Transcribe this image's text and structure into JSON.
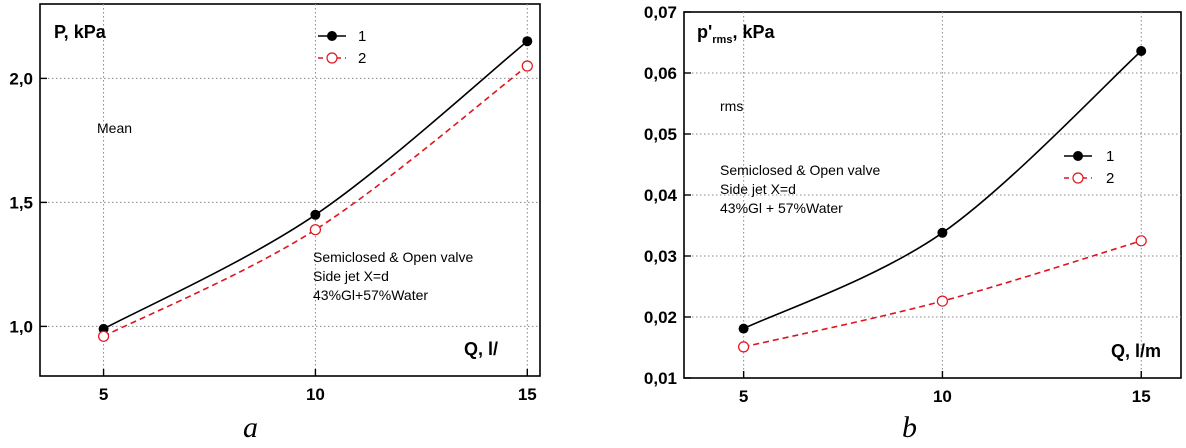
{
  "chart_data": [
    {
      "type": "line",
      "panel_label": "a",
      "ylabel": "P, kPa",
      "xlabel": "Q, l/",
      "xlim": [
        3.5,
        15.3
      ],
      "ylim": [
        0.8,
        2.3
      ],
      "xticks": [
        5,
        10,
        15
      ],
      "yticks": [
        1.0,
        1.5,
        2.0
      ],
      "xtick_labels": [
        "5",
        "10",
        "15"
      ],
      "ytick_labels": [
        "1,0",
        "1,5",
        "2,0"
      ],
      "grid": "vertical dotted lines at x ticks, horizontal dotted lines at y ticks",
      "legend_position": "top-center",
      "annotations": [
        "Mean",
        "Semiclosed & Open valve",
        "Side jet X=d",
        "43%Gl+57%Water"
      ],
      "series": [
        {
          "name": "1",
          "color": "#000000",
          "marker": "filled-circle",
          "line": "solid",
          "x": [
            5,
            10,
            15
          ],
          "y": [
            0.99,
            1.45,
            2.15
          ]
        },
        {
          "name": "2",
          "color": "#e0141e",
          "marker": "open-circle",
          "line": "dashed",
          "x": [
            5,
            10,
            15
          ],
          "y": [
            0.96,
            1.39,
            2.05
          ]
        }
      ]
    },
    {
      "type": "line",
      "panel_label": "b",
      "ylabel_main": "p'",
      "ylabel_sub": "rms",
      "ylabel_tail": ", kPa",
      "xlabel": "Q, l/m",
      "xlim": [
        3.5,
        16.0
      ],
      "ylim": [
        0.01,
        0.07
      ],
      "xticks": [
        5,
        10,
        15
      ],
      "yticks": [
        0.01,
        0.02,
        0.03,
        0.04,
        0.05,
        0.06,
        0.07
      ],
      "xtick_labels": [
        "5",
        "10",
        "15"
      ],
      "ytick_labels": [
        "0,01",
        "0,02",
        "0,03",
        "0,04",
        "0,05",
        "0,06",
        "0,07"
      ],
      "grid": "vertical dotted lines at x ticks, horizontal dotted lines at y ticks",
      "legend_position": "center-right",
      "annotations": [
        "rms",
        "Semiclosed & Open valve",
        "Side jet X=d",
        "43%Gl + 57%Water"
      ],
      "series": [
        {
          "name": "1",
          "color": "#000000",
          "marker": "filled-circle",
          "line": "solid",
          "x": [
            5,
            10,
            15
          ],
          "y": [
            0.0181,
            0.0338,
            0.0636
          ]
        },
        {
          "name": "2",
          "color": "#e0141e",
          "marker": "open-circle",
          "line": "dashed",
          "x": [
            5,
            10,
            15
          ],
          "y": [
            0.0151,
            0.0226,
            0.0325
          ]
        }
      ]
    }
  ]
}
